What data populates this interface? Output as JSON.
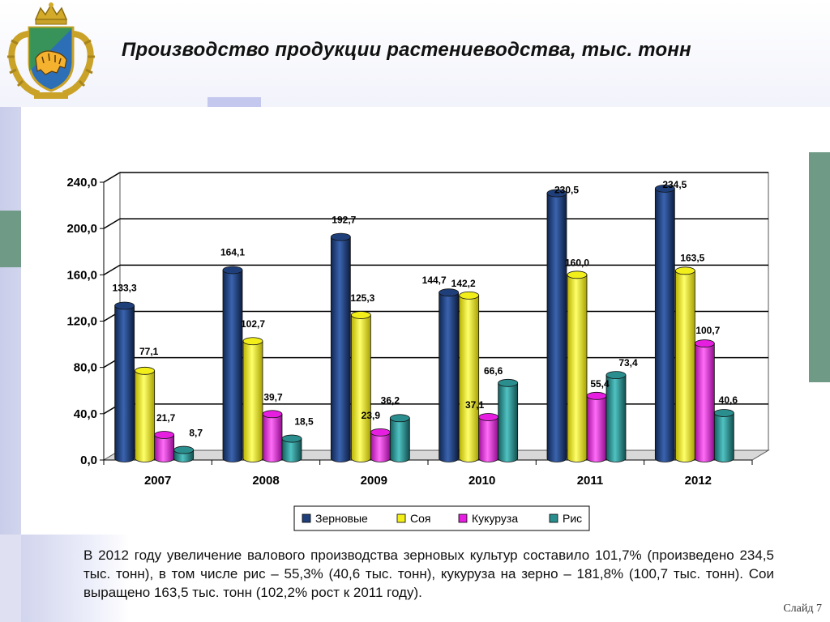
{
  "slide": {
    "title": "Производство продукции растениеводства, тыс. тонн",
    "caption": "В 2012 году увеличение валового производства зерновых культур составило 101,7% (произведено 234,5 тыс. тонн), в том числе рис – 55,3% (40,6 тыс. тонн), кукуруза на зерно – 181,8% (100,7 тыс. тонн). Сои выращено 163,5 тыс. тонн (102,2% рост к 2011 году).",
    "slide_number": "Слайд 7",
    "logo_icon": "primorsky-krai-coat-of-arms-icon"
  },
  "chart_data": {
    "type": "bar",
    "title": "Производство продукции растениеводства, тыс. тонн",
    "categories": [
      "2007",
      "2008",
      "2009",
      "2010",
      "2011",
      "2012"
    ],
    "series": [
      {
        "name": "Зерновые",
        "color": "#1f3f7a",
        "values": [
          133.3,
          164.1,
          192.7,
          144.7,
          230.5,
          234.5
        ],
        "labels": [
          "133,3",
          "164,1",
          "192,7",
          "144,7",
          "230,5",
          "234,5"
        ]
      },
      {
        "name": "Соя",
        "color": "#f2ee1a",
        "values": [
          77.1,
          102.7,
          125.3,
          142.2,
          160.0,
          163.5
        ],
        "labels": [
          "77,1",
          "102,7",
          "125,3",
          "142,2",
          "160,0",
          "163,5"
        ]
      },
      {
        "name": "Кукуруза",
        "color": "#e61ee0",
        "values": [
          21.7,
          39.7,
          23.9,
          37.1,
          55.4,
          100.7
        ],
        "labels": [
          "21,7",
          "39,7",
          "23,9",
          "37,1",
          "55,4",
          "100,7"
        ]
      },
      {
        "name": "Рис",
        "color": "#2b8e8e",
        "values": [
          8.7,
          18.5,
          36.2,
          66.6,
          73.4,
          40.6
        ],
        "labels": [
          "8,7",
          "18,5",
          "36,2",
          "66,6",
          "73,4",
          "40,6"
        ]
      }
    ],
    "y_ticks": [
      "0,0",
      "40,0",
      "80,0",
      "120,0",
      "160,0",
      "200,0",
      "240,0"
    ],
    "y_tick_values": [
      0,
      40,
      80,
      120,
      160,
      200,
      240
    ],
    "ylim": [
      0,
      240
    ],
    "grid": true,
    "style": "3d-cylinder",
    "legend_position": "bottom"
  }
}
